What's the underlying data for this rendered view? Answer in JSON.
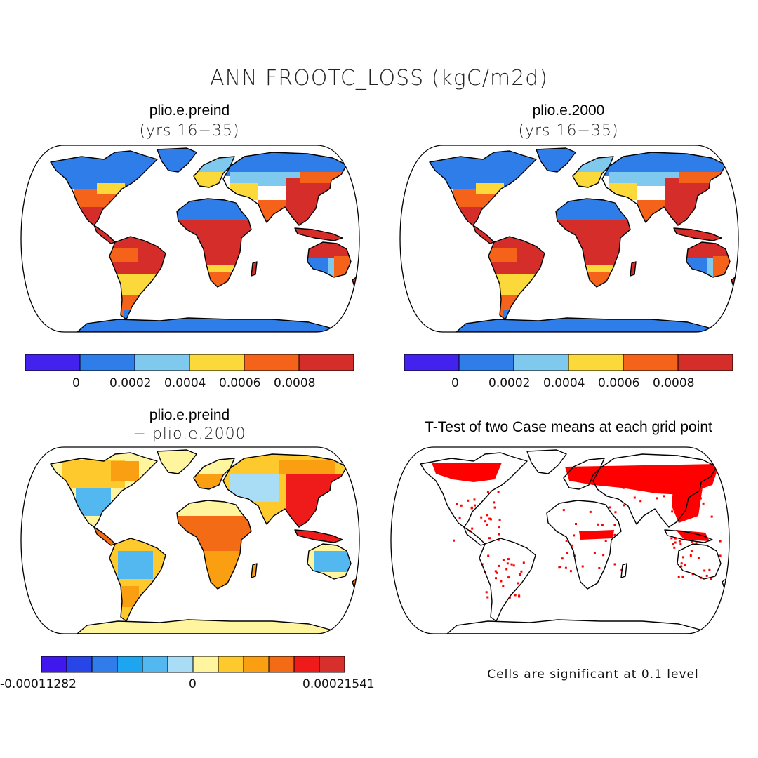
{
  "figure": {
    "title": "ANN FROOTC_LOSS (kgC/m2d)",
    "panels": [
      {
        "id": "a",
        "title": "plio.e.preind",
        "subtitle": "(yrs 16−35)"
      },
      {
        "id": "b",
        "title": "plio.e.2000",
        "subtitle": "(yrs 16−35)"
      },
      {
        "id": "c",
        "title": "plio.e.preind",
        "subtitle": "− plio.e.2000"
      },
      {
        "id": "d",
        "title": "T-Test of two Case means at each grid point",
        "subtitle": ""
      }
    ],
    "colorbar_top": {
      "colors": [
        "#4422ee",
        "#2e7de8",
        "#7fc8ee",
        "#fcd93a",
        "#f5621a",
        "#d42d2a"
      ],
      "labels": [
        "0",
        "0.0002",
        "0.0004",
        "0.0006",
        "0.0008"
      ]
    },
    "colorbar_diff": {
      "colors": [
        "#4018ee",
        "#2845e8",
        "#2f7cea",
        "#1ea5f0",
        "#52b8ef",
        "#a9dcf5",
        "#fff59e",
        "#fdc92d",
        "#fb9f12",
        "#f36b14",
        "#ef1b1b",
        "#d72f2b"
      ],
      "labels": [
        "-0.00011282",
        "0",
        "0.00021541"
      ]
    },
    "significance_note": "Cells are significant at 0.1 level",
    "significance_color": "#ff0000"
  }
}
